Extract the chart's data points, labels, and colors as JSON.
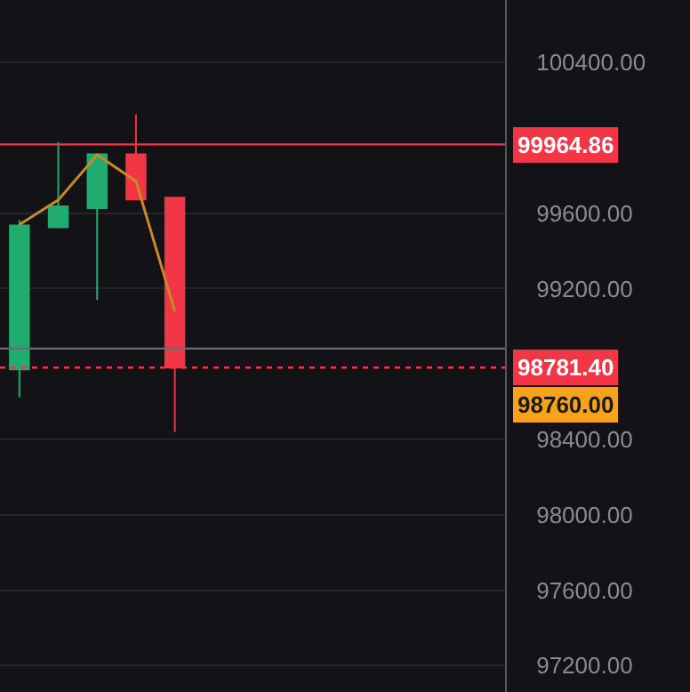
{
  "chart_data": {
    "type": "candlestick",
    "categories": [
      null,
      null,
      null,
      null,
      null,
      null,
      null,
      null,
      null,
      null,
      null,
      null,
      null
    ],
    "ohlc": [
      [
        98772,
        99563,
        98624,
        99535
      ],
      [
        99526,
        99977,
        99526,
        99636
      ],
      [
        99627,
        99912,
        99140,
        99912
      ],
      [
        99912,
        100124,
        99673,
        99673
      ],
      [
        99682,
        99682,
        98440,
        98781.4
      ],
      null,
      null,
      null,
      null,
      null,
      null,
      null,
      null
    ],
    "colors": [
      "#22ab6e",
      "#22ab6e",
      "#22ab6e",
      "#f23645",
      "#f23645",
      null,
      null,
      null,
      null,
      null,
      null,
      null,
      null
    ],
    "series": [
      {
        "type": "line",
        "color": "#c8892a",
        "values": [
          99540,
          99670,
          99910,
          99770,
          99080,
          null,
          null,
          null,
          null,
          null,
          null,
          null,
          null
        ]
      }
    ],
    "ylim": [
      97060,
      100731
    ],
    "yticks": [
      {
        "value": 97200,
        "label": "97200.00"
      },
      {
        "value": 97600,
        "label": "97600.00"
      },
      {
        "value": 98000,
        "label": "98000.00"
      },
      {
        "value": 98400,
        "label": "98400.00"
      },
      {
        "value": 99200,
        "label": "99200.00"
      },
      {
        "value": 99600,
        "label": "99600.00"
      },
      {
        "value": 100400,
        "label": "100400.00"
      }
    ],
    "ref_lines": [
      {
        "axis": "y",
        "value": 99964.86,
        "label": "99964.86",
        "color": "#f23645",
        "line_style": "solid"
      },
      {
        "axis": "y",
        "value": 98882,
        "label": null,
        "color": "#6a6a72",
        "line_style": "solid"
      },
      {
        "axis": "y",
        "value": 98781.4,
        "label": "98781.40",
        "color": "#f23645",
        "line_style": "dotted"
      }
    ],
    "annotations": [
      "98760.00"
    ],
    "grid": "y",
    "tick_labels": "y"
  }
}
